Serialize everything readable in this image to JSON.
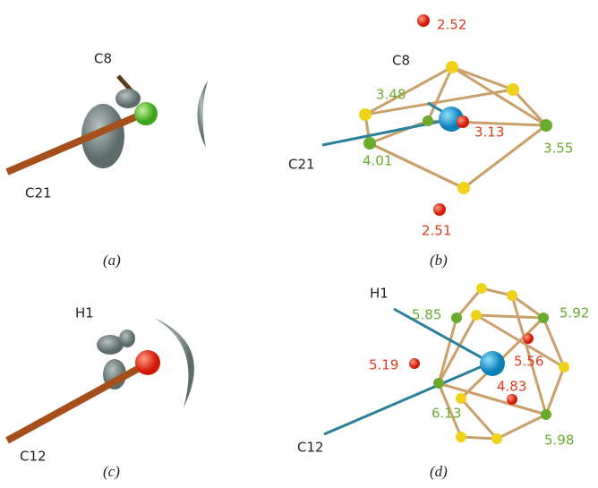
{
  "panels": [
    {
      "caption": "(a)",
      "atoms": [
        "C8",
        "C21"
      ]
    },
    {
      "caption": "(b)",
      "atoms": [
        "C8",
        "C21"
      ],
      "distances": [
        "2.52",
        "3.48",
        "3.13",
        "3.55",
        "4.01",
        "2.51"
      ]
    },
    {
      "caption": "(c)",
      "atoms": [
        "H1",
        "C12"
      ]
    },
    {
      "caption": "(d)",
      "atoms": [
        "H1",
        "C12"
      ],
      "distances": [
        "5.85",
        "5.92",
        "5.19",
        "5.56",
        "4.83",
        "6.13",
        "5.98"
      ]
    }
  ]
}
